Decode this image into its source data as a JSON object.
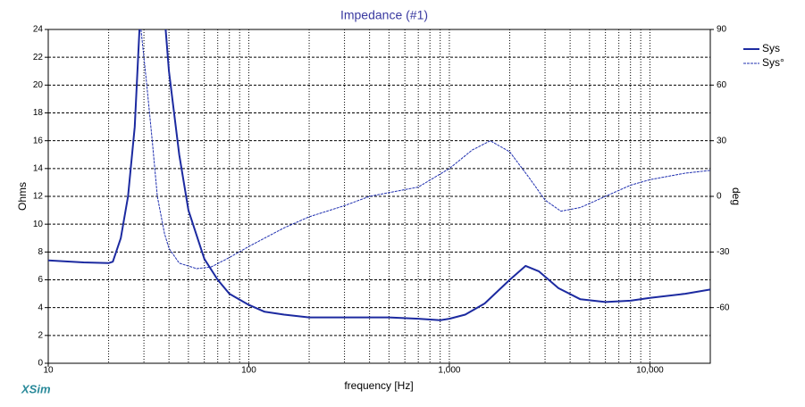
{
  "chart_data": {
    "type": "line",
    "title": "Impedance (#1)",
    "xlabel": "frequency [Hz]",
    "ylabel": "Ohms",
    "y2label": "deg",
    "watermark": "XSim",
    "xscale": "log",
    "xlim": [
      10,
      20000
    ],
    "xticks": [
      10,
      100,
      {
        "value": 1000,
        "label": "1,000"
      },
      {
        "value": 10000,
        "label": "10,000"
      }
    ],
    "ylim": [
      0,
      24
    ],
    "yticks": [
      0,
      2,
      4,
      6,
      8,
      10,
      12,
      14,
      16,
      18,
      20,
      22,
      24
    ],
    "y2lim": [
      -90,
      90
    ],
    "y2ticks": [
      -60,
      -30,
      0,
      30,
      60,
      90
    ],
    "grid": true,
    "legend": "top-right",
    "series": [
      {
        "name": "Sys",
        "color": "#1c2aa0",
        "x": [
          10,
          15,
          20,
          21,
          23,
          25,
          27,
          28.5,
          33,
          38.5,
          40,
          45,
          50,
          60,
          70,
          80,
          100,
          120,
          150,
          200,
          300,
          400,
          500,
          700,
          900,
          1000,
          1200,
          1500,
          2000,
          2400,
          2800,
          3500,
          4500,
          6000,
          8000,
          10000,
          15000,
          20000
        ],
        "values": [
          7.4,
          7.25,
          7.2,
          7.3,
          9,
          12,
          17,
          24,
          null,
          24,
          21,
          15,
          11,
          7.5,
          6,
          5,
          4.2,
          3.7,
          3.5,
          3.3,
          3.3,
          3.3,
          3.3,
          3.2,
          3.1,
          3.2,
          3.5,
          4.3,
          6,
          7,
          6.6,
          5.4,
          4.6,
          4.4,
          4.5,
          4.7,
          5,
          5.3
        ]
      },
      {
        "name": "Sys°",
        "color": "#2030b0",
        "axis": "y2",
        "x": [
          29,
          31,
          33,
          35,
          38,
          40,
          45,
          55,
          65,
          80,
          100,
          150,
          200,
          300,
          400,
          500,
          700,
          1000,
          1300,
          1600,
          2000,
          2500,
          3000,
          3600,
          4500,
          6000,
          8000,
          10000,
          15000,
          20000
        ],
        "values": [
          90,
          60,
          30,
          0,
          -20,
          -28,
          -36,
          -39,
          -38,
          -33,
          -27,
          -17,
          -11,
          -5,
          0,
          2,
          5,
          15,
          25,
          30,
          24,
          10,
          -2,
          -8,
          -6,
          0,
          6,
          9,
          12.5,
          14
        ]
      }
    ]
  }
}
